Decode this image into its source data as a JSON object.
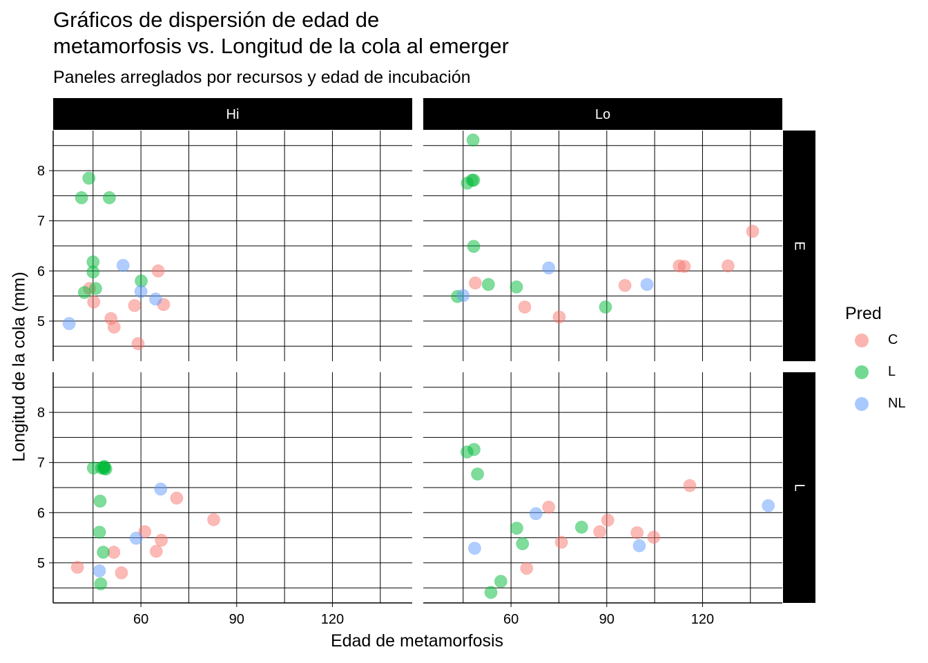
{
  "chart_data": {
    "type": "scatter",
    "title": "Gráficos de dispersión de edad de\nmetamorfosis vs. Longitud de la cola al emerger",
    "subtitle": "Paneles arreglados por recursos y edad de incubación",
    "xlabel": "Edad de metamorfosis",
    "ylabel": "Longitud de la cola (mm)",
    "xlim": [
      32.5,
      145
    ],
    "ylim": [
      4.2,
      8.8
    ],
    "x_ticks": [
      60,
      90,
      120
    ],
    "y_ticks": [
      5,
      6,
      7,
      8
    ],
    "grid": true,
    "facet_cols": [
      "Hi",
      "Lo"
    ],
    "facet_rows": [
      "E",
      "L"
    ],
    "legend": {
      "title": "Pred",
      "position": "right",
      "entries": [
        {
          "label": "C",
          "color": "#F8766D"
        },
        {
          "label": "L",
          "color": "#00BA38"
        },
        {
          "label": "NL",
          "color": "#619CFF"
        }
      ]
    },
    "panels": [
      {
        "col": "Hi",
        "row": "E",
        "series": [
          {
            "name": "C",
            "x": [
              43.9,
              45.2,
              50.6,
              51.6,
              58.0,
              59.1,
              65.4,
              67.1
            ],
            "y": [
              5.65,
              5.38,
              5.05,
              4.88,
              5.31,
              4.55,
              6.0,
              5.33
            ]
          },
          {
            "name": "L",
            "x": [
              41.4,
              42.3,
              43.7,
              45.0,
              45.0,
              45.8,
              50.1,
              60.1
            ],
            "y": [
              7.46,
              5.57,
              7.85,
              6.18,
              5.98,
              5.65,
              7.46,
              5.8
            ]
          },
          {
            "name": "NL",
            "x": [
              37.5,
              54.4,
              60.0,
              64.6
            ],
            "y": [
              4.95,
              6.11,
              5.59,
              5.44
            ]
          }
        ]
      },
      {
        "col": "Lo",
        "row": "E",
        "series": [
          {
            "name": "C",
            "x": [
              48.8,
              64.3,
              75.1,
              95.7,
              112.7,
              114.3,
              128.0,
              135.7
            ],
            "y": [
              5.76,
              5.28,
              5.08,
              5.71,
              6.1,
              6.09,
              6.1,
              6.79
            ]
          },
          {
            "name": "L",
            "x": [
              43.2,
              46.3,
              47.8,
              48.1,
              48.3,
              48.3,
              52.9,
              61.7,
              89.6
            ],
            "y": [
              5.49,
              7.75,
              7.81,
              8.61,
              6.49,
              7.81,
              5.73,
              5.68,
              5.28
            ]
          },
          {
            "name": "NL",
            "x": [
              45.0,
              71.8,
              102.6
            ],
            "y": [
              5.51,
              6.06,
              5.73
            ]
          }
        ]
      },
      {
        "col": "Hi",
        "row": "L",
        "series": [
          {
            "name": "C",
            "x": [
              40.1,
              51.5,
              53.9,
              61.2,
              64.8,
              66.4,
              71.2,
              82.8
            ],
            "y": [
              4.91,
              5.21,
              4.8,
              5.62,
              5.23,
              5.45,
              6.29,
              5.86
            ]
          },
          {
            "name": "L",
            "x": [
              45.1,
              47.0,
              47.2,
              47.4,
              47.7,
              48.2,
              48.5,
              48.5,
              48.5,
              49.0
            ],
            "y": [
              6.89,
              5.61,
              6.23,
              4.58,
              6.89,
              5.21,
              6.88,
              6.91,
              6.92,
              6.87
            ]
          },
          {
            "name": "NL",
            "x": [
              47.0,
              58.5,
              66.2
            ],
            "y": [
              4.84,
              5.49,
              6.47
            ]
          }
        ]
      },
      {
        "col": "Lo",
        "row": "L",
        "series": [
          {
            "name": "C",
            "x": [
              64.9,
              71.8,
              75.8,
              87.8,
              90.3,
              99.5,
              104.7,
              116.0
            ],
            "y": [
              4.89,
              6.11,
              5.41,
              5.62,
              5.85,
              5.6,
              5.51,
              6.54
            ]
          },
          {
            "name": "L",
            "x": [
              46.2,
              48.4,
              49.5,
              53.7,
              56.8,
              61.8,
              63.6,
              82.1
            ],
            "y": [
              7.21,
              7.26,
              6.77,
              4.41,
              4.63,
              5.69,
              5.38,
              5.71
            ]
          },
          {
            "name": "NL",
            "x": [
              48.6,
              67.8,
              100.2,
              140.6
            ],
            "y": [
              5.29,
              5.98,
              5.34,
              6.14
            ]
          }
        ]
      }
    ]
  }
}
